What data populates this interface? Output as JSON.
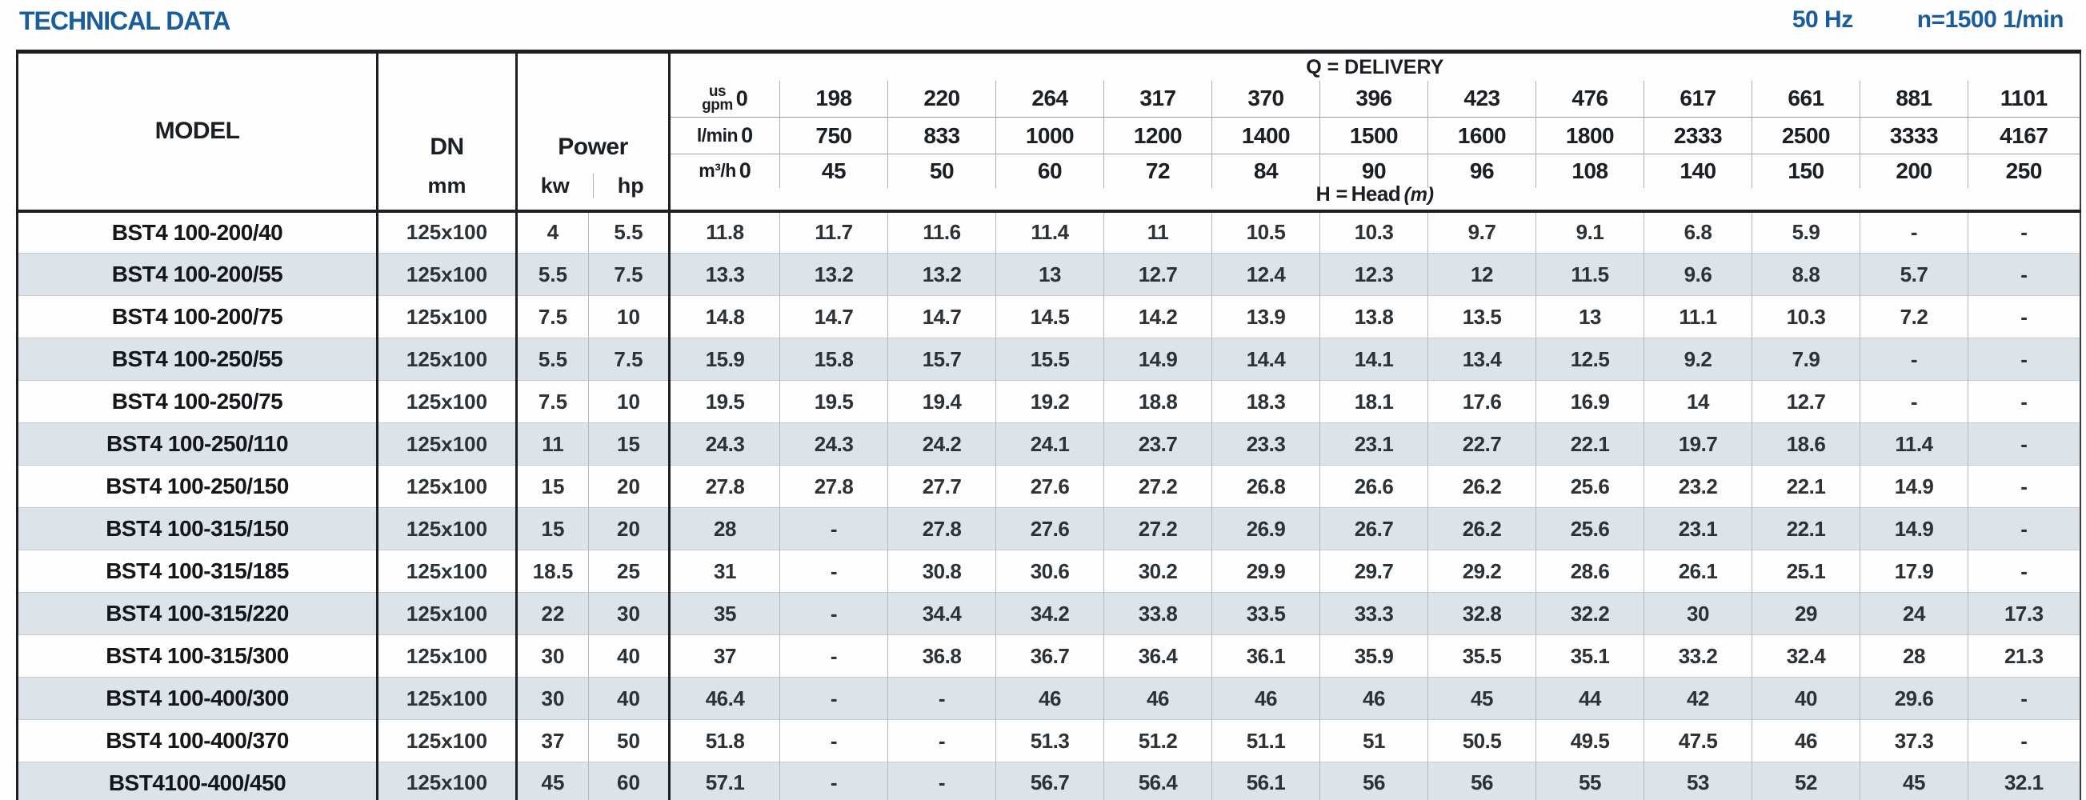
{
  "meta": {
    "title": "TECHNICAL DATA",
    "frequency": "50 Hz",
    "speed": "n=1500 1/min"
  },
  "table": {
    "headers": {
      "model": "MODEL",
      "dn": "DN",
      "dn_unit": "mm",
      "power": "Power",
      "kw": "kw",
      "hp": "hp",
      "delivery": "Q = DELIVERY",
      "head_prefix": "H =",
      "head_word": "Head",
      "head_unit": "(m)",
      "gpm_line1": "us",
      "gpm_line2": "gpm",
      "lmin": "l/min",
      "m3h": "m³/h"
    },
    "q_gpm": [
      "0",
      "198",
      "220",
      "264",
      "317",
      "370",
      "396",
      "423",
      "476",
      "617",
      "661",
      "881",
      "1101"
    ],
    "q_lmin": [
      "0",
      "750",
      "833",
      "1000",
      "1200",
      "1400",
      "1500",
      "1600",
      "1800",
      "2333",
      "2500",
      "3333",
      "4167"
    ],
    "q_m3h": [
      "0",
      "45",
      "50",
      "60",
      "72",
      "84",
      "90",
      "96",
      "108",
      "140",
      "150",
      "200",
      "250"
    ],
    "rows": [
      {
        "model": "BST4 100-200/40",
        "dn": "125x100",
        "kw": "4",
        "hp": "5.5",
        "heads": [
          "11.8",
          "11.7",
          "11.6",
          "11.4",
          "11",
          "10.5",
          "10.3",
          "9.7",
          "9.1",
          "6.8",
          "5.9",
          "-",
          "-"
        ]
      },
      {
        "model": "BST4 100-200/55",
        "dn": "125x100",
        "kw": "5.5",
        "hp": "7.5",
        "heads": [
          "13.3",
          "13.2",
          "13.2",
          "13",
          "12.7",
          "12.4",
          "12.3",
          "12",
          "11.5",
          "9.6",
          "8.8",
          "5.7",
          "-"
        ]
      },
      {
        "model": "BST4 100-200/75",
        "dn": "125x100",
        "kw": "7.5",
        "hp": "10",
        "heads": [
          "14.8",
          "14.7",
          "14.7",
          "14.5",
          "14.2",
          "13.9",
          "13.8",
          "13.5",
          "13",
          "11.1",
          "10.3",
          "7.2",
          "-"
        ]
      },
      {
        "model": "BST4 100-250/55",
        "dn": "125x100",
        "kw": "5.5",
        "hp": "7.5",
        "heads": [
          "15.9",
          "15.8",
          "15.7",
          "15.5",
          "14.9",
          "14.4",
          "14.1",
          "13.4",
          "12.5",
          "9.2",
          "7.9",
          "-",
          "-"
        ]
      },
      {
        "model": "BST4 100-250/75",
        "dn": "125x100",
        "kw": "7.5",
        "hp": "10",
        "heads": [
          "19.5",
          "19.5",
          "19.4",
          "19.2",
          "18.8",
          "18.3",
          "18.1",
          "17.6",
          "16.9",
          "14",
          "12.7",
          "-",
          "-"
        ]
      },
      {
        "model": "BST4 100-250/110",
        "dn": "125x100",
        "kw": "11",
        "hp": "15",
        "heads": [
          "24.3",
          "24.3",
          "24.2",
          "24.1",
          "23.7",
          "23.3",
          "23.1",
          "22.7",
          "22.1",
          "19.7",
          "18.6",
          "11.4",
          "-"
        ]
      },
      {
        "model": "BST4 100-250/150",
        "dn": "125x100",
        "kw": "15",
        "hp": "20",
        "heads": [
          "27.8",
          "27.8",
          "27.7",
          "27.6",
          "27.2",
          "26.8",
          "26.6",
          "26.2",
          "25.6",
          "23.2",
          "22.1",
          "14.9",
          "-"
        ]
      },
      {
        "model": "BST4 100-315/150",
        "dn": "125x100",
        "kw": "15",
        "hp": "20",
        "heads": [
          "28",
          "-",
          "27.8",
          "27.6",
          "27.2",
          "26.9",
          "26.7",
          "26.2",
          "25.6",
          "23.1",
          "22.1",
          "14.9",
          "-"
        ]
      },
      {
        "model": "BST4 100-315/185",
        "dn": "125x100",
        "kw": "18.5",
        "hp": "25",
        "heads": [
          "31",
          "-",
          "30.8",
          "30.6",
          "30.2",
          "29.9",
          "29.7",
          "29.2",
          "28.6",
          "26.1",
          "25.1",
          "17.9",
          "-"
        ]
      },
      {
        "model": "BST4 100-315/220",
        "dn": "125x100",
        "kw": "22",
        "hp": "30",
        "heads": [
          "35",
          "-",
          "34.4",
          "34.2",
          "33.8",
          "33.5",
          "33.3",
          "32.8",
          "32.2",
          "30",
          "29",
          "24",
          "17.3"
        ]
      },
      {
        "model": "BST4 100-315/300",
        "dn": "125x100",
        "kw": "30",
        "hp": "40",
        "heads": [
          "37",
          "-",
          "36.8",
          "36.7",
          "36.4",
          "36.1",
          "35.9",
          "35.5",
          "35.1",
          "33.2",
          "32.4",
          "28",
          "21.3"
        ]
      },
      {
        "model": "BST4 100-400/300",
        "dn": "125x100",
        "kw": "30",
        "hp": "40",
        "heads": [
          "46.4",
          "-",
          "-",
          "46",
          "46",
          "46",
          "46",
          "45",
          "44",
          "42",
          "40",
          "29.6",
          "-"
        ]
      },
      {
        "model": "BST4 100-400/370",
        "dn": "125x100",
        "kw": "37",
        "hp": "50",
        "heads": [
          "51.8",
          "-",
          "-",
          "51.3",
          "51.2",
          "51.1",
          "51",
          "50.5",
          "49.5",
          "47.5",
          "46",
          "37.3",
          "-"
        ]
      },
      {
        "model": "BST4100-400/450",
        "dn": "125x100",
        "kw": "45",
        "hp": "60",
        "heads": [
          "57.1",
          "-",
          "-",
          "56.7",
          "56.4",
          "56.1",
          "56",
          "56",
          "55",
          "53",
          "52",
          "45",
          "32.1"
        ]
      }
    ]
  }
}
